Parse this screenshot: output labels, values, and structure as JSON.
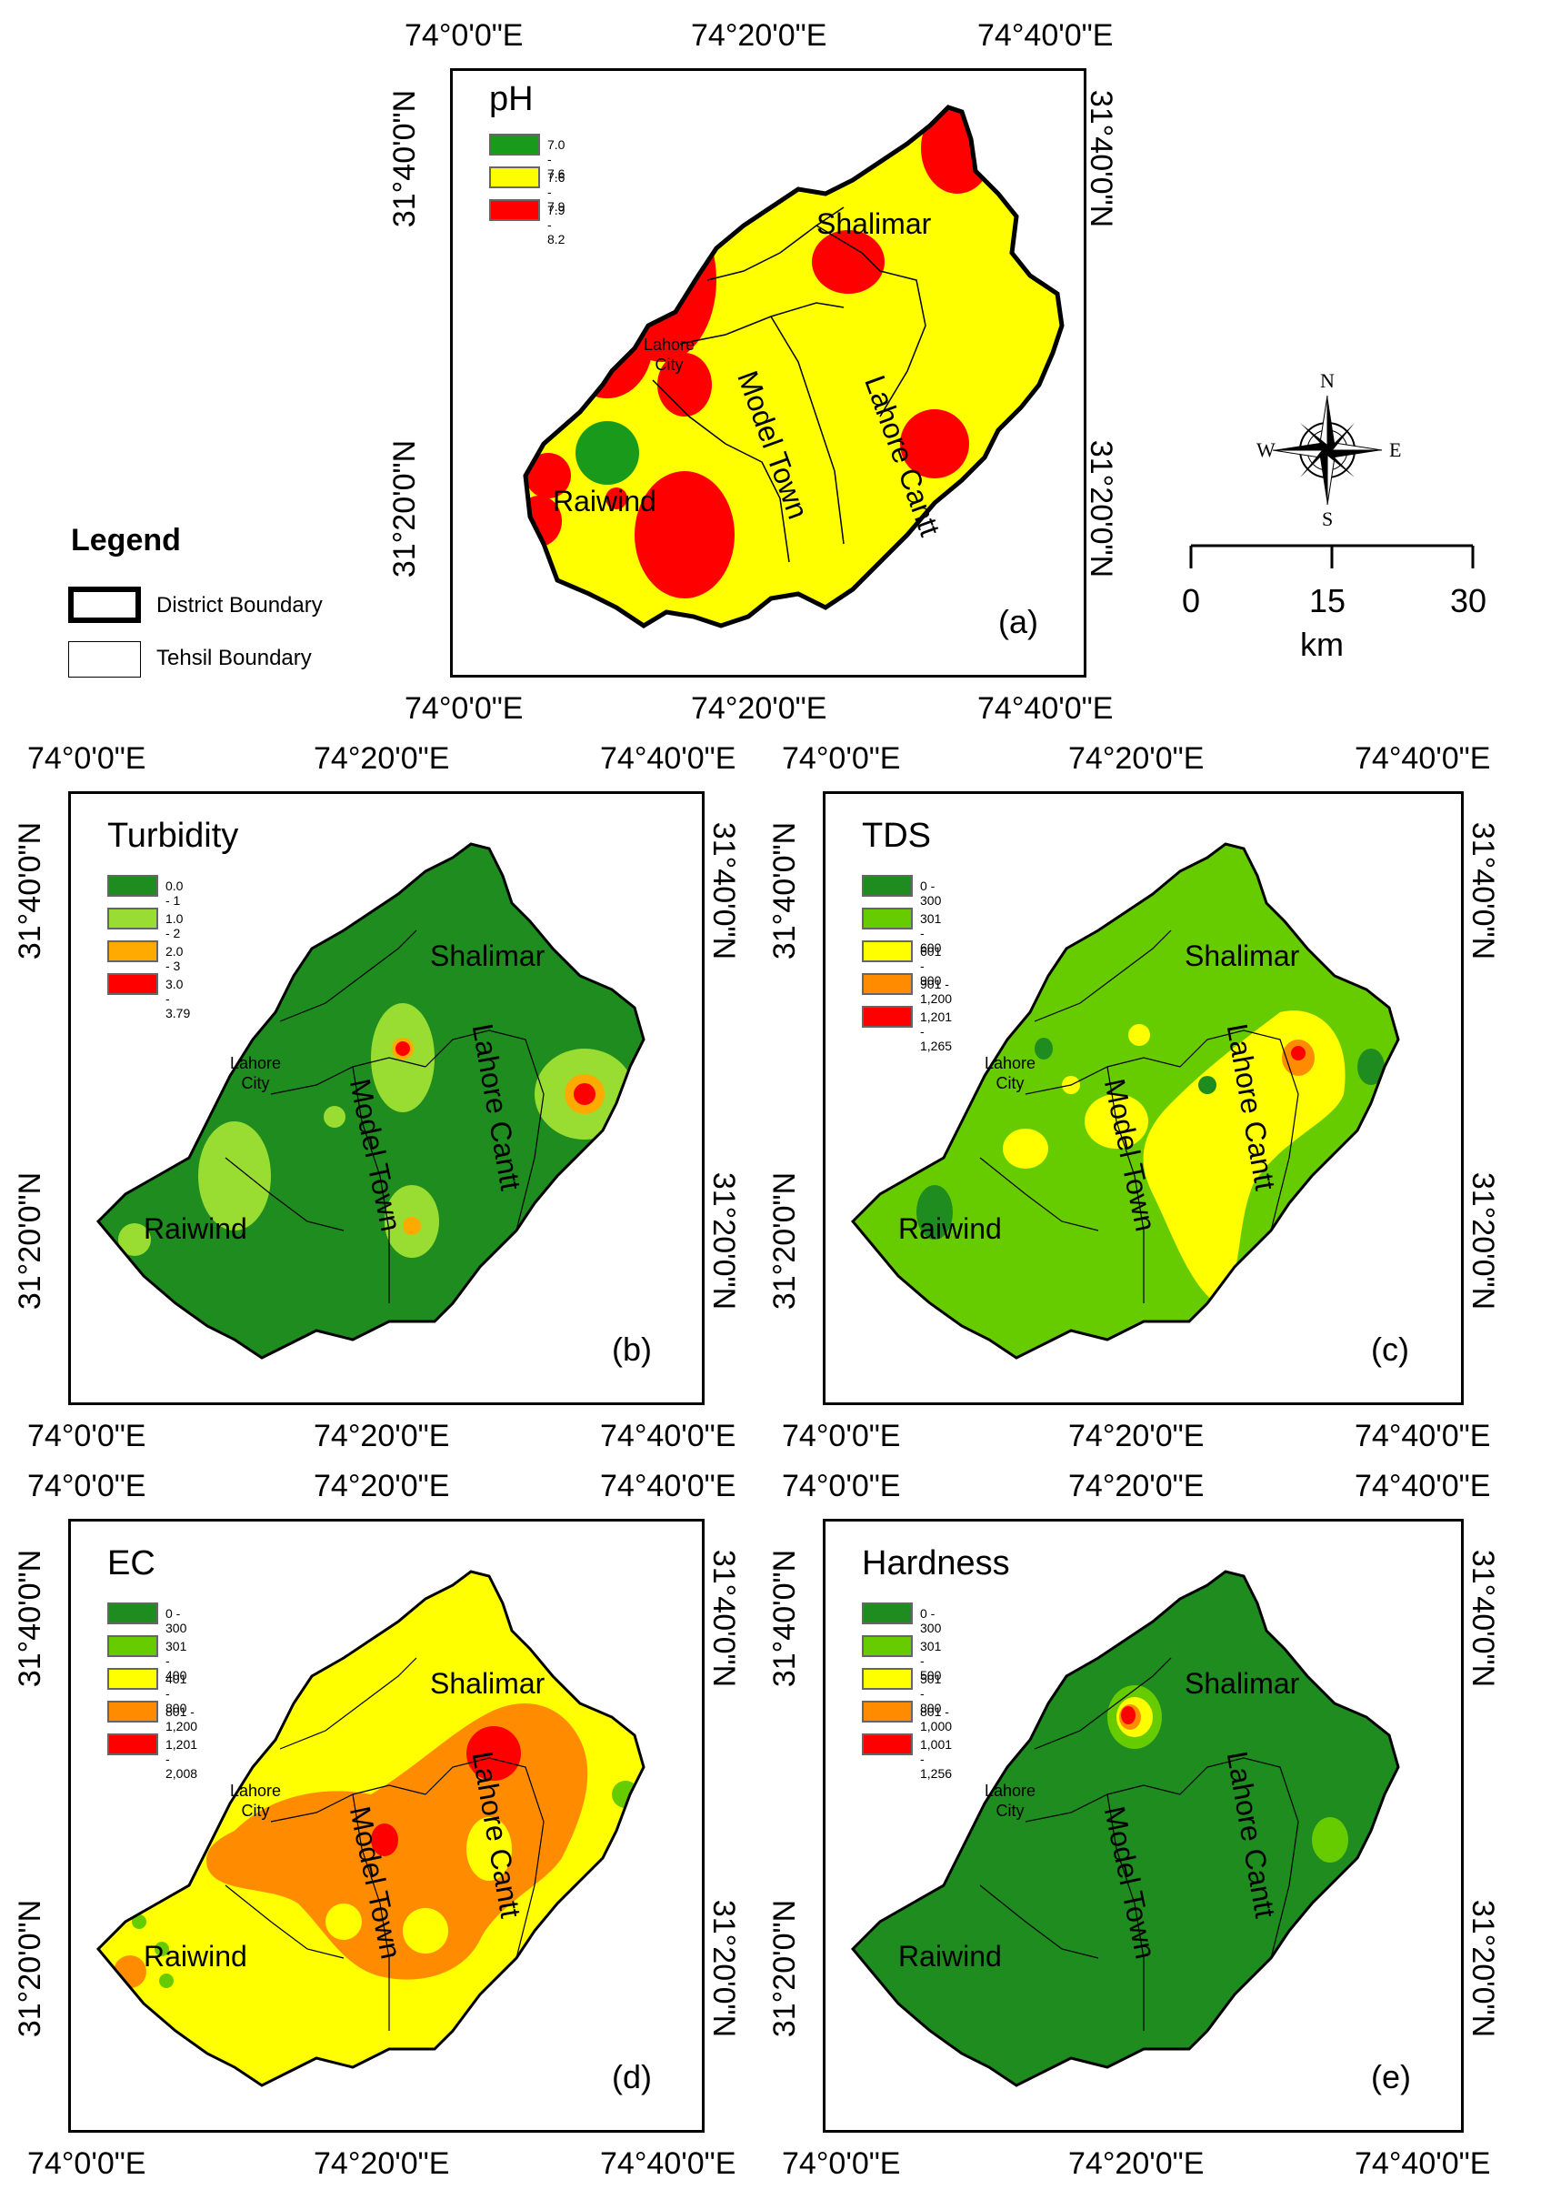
{
  "axes": {
    "lon_ticks": [
      "74°0'0\"E",
      "74°20'0\"E",
      "74°40'0\"E"
    ],
    "lat_ticks": [
      "31°40'0\"N",
      "31°20'0\"N"
    ]
  },
  "tehsils": {
    "shalimar": "Shalimar",
    "lahore_cantt": "Lahore Cantt",
    "model_town": "Model Town",
    "raiwind": "Raiwind",
    "lahore_city": "Lahore\nCity"
  },
  "legend": {
    "title": "Legend",
    "district": "District Boundary",
    "tehsil": "Tehsil Boundary"
  },
  "compass": {
    "n": "N",
    "s": "S",
    "e": "E",
    "w": "W"
  },
  "scale": {
    "labels": [
      "0",
      "15",
      "30"
    ],
    "unit": "km"
  },
  "panels": [
    {
      "id": "a",
      "title": "pH",
      "letter": "(a)",
      "classes": [
        {
          "label": "7.0 - 7.6",
          "color": "#1a9a1a"
        },
        {
          "label": "7.6 - 7.9",
          "color": "#ffff00"
        },
        {
          "label": "7.9 - 8.2",
          "color": "#ff0000"
        }
      ]
    },
    {
      "id": "b",
      "title": "Turbidity",
      "letter": "(b)",
      "classes": [
        {
          "label": "0.0 - 1",
          "color": "#1e8c1e"
        },
        {
          "label": "1.0 - 2",
          "color": "#99dd33"
        },
        {
          "label": "2.0 - 3",
          "color": "#ffaa00"
        },
        {
          "label": "3.0 - 3.79",
          "color": "#ff0000"
        }
      ]
    },
    {
      "id": "c",
      "title": "TDS",
      "letter": "(c)",
      "classes": [
        {
          "label": "0 - 300",
          "color": "#1e8c1e"
        },
        {
          "label": "301 - 600",
          "color": "#66cc00"
        },
        {
          "label": "601 - 900",
          "color": "#ffff00"
        },
        {
          "label": "901 - 1,200",
          "color": "#ff8c00"
        },
        {
          "label": "1,201 - 1,265",
          "color": "#ff0000"
        }
      ]
    },
    {
      "id": "d",
      "title": "EC",
      "letter": "(d)",
      "classes": [
        {
          "label": "0 - 300",
          "color": "#1e8c1e"
        },
        {
          "label": "301 - 400",
          "color": "#66cc00"
        },
        {
          "label": "401 - 800",
          "color": "#ffff00"
        },
        {
          "label": "801 - 1,200",
          "color": "#ff8c00"
        },
        {
          "label": "1,201 - 2,008",
          "color": "#ff0000"
        }
      ]
    },
    {
      "id": "e",
      "title": "Hardness",
      "letter": "(e)",
      "classes": [
        {
          "label": "0 - 300",
          "color": "#1e8c1e"
        },
        {
          "label": "301 - 500",
          "color": "#66cc00"
        },
        {
          "label": "501 - 800",
          "color": "#ffff00"
        },
        {
          "label": "801 - 1,000",
          "color": "#ff8c00"
        },
        {
          "label": "1,001 - 1,256",
          "color": "#ff0000"
        }
      ]
    }
  ]
}
